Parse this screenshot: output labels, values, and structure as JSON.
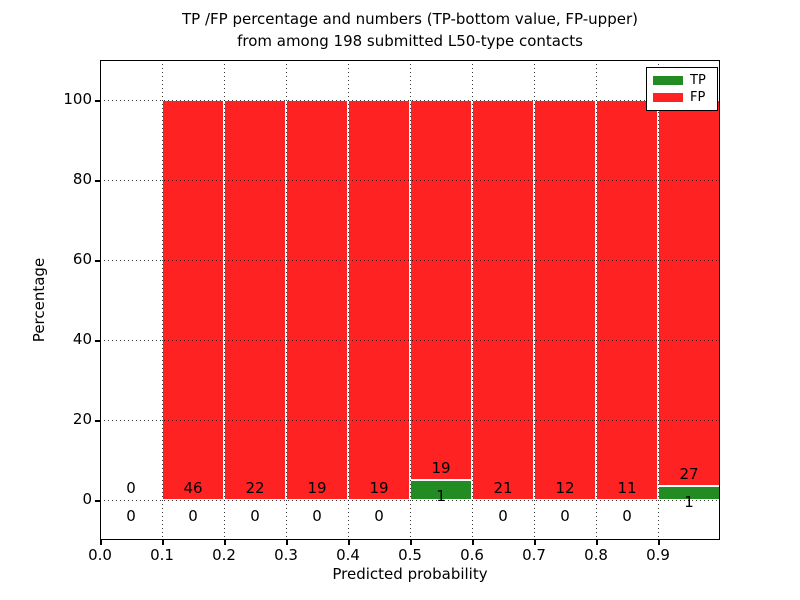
{
  "title": {
    "line1": "TP /FP percentage and numbers (TP-bottom value, FP-upper)",
    "line2": "from among 198 submitted L50-type contacts"
  },
  "axes": {
    "xlabel": "Predicted probability",
    "ylabel": "Percentage"
  },
  "colors": {
    "tp": "#228b22",
    "fp": "#ff2222",
    "grid": "#000000",
    "frame": "#000000",
    "background": "#ffffff",
    "text": "#000000"
  },
  "legend": {
    "items": [
      {
        "label": "TP",
        "color": "#228b22"
      },
      {
        "label": "FP",
        "color": "#ff2222"
      }
    ]
  },
  "chart_data": {
    "type": "bar",
    "stacked": true,
    "title": "TP /FP percentage and numbers (TP-bottom value, FP-upper) from among 198 submitted L50-type contacts",
    "xlabel": "Predicted probability",
    "ylabel": "Percentage",
    "xlim": [
      0.0,
      1.0
    ],
    "ylim": [
      -10,
      110
    ],
    "x_ticks": [
      0.0,
      0.1,
      0.2,
      0.3,
      0.4,
      0.5,
      0.6,
      0.7,
      0.8,
      0.9
    ],
    "x_tick_labels": [
      "0.0",
      "0.1",
      "0.2",
      "0.3",
      "0.4",
      "0.5",
      "0.6",
      "0.7",
      "0.8",
      "0.9"
    ],
    "y_ticks": [
      0,
      20,
      40,
      60,
      80,
      100
    ],
    "y_tick_labels": [
      "0",
      "20",
      "40",
      "60",
      "80",
      "100"
    ],
    "grid": "dotted",
    "legend_position": "upper right",
    "total_contacts": 198,
    "bin_edges": [
      0.0,
      0.1,
      0.2,
      0.3,
      0.4,
      0.5,
      0.6,
      0.7,
      0.8,
      0.9,
      1.0
    ],
    "bins": [
      {
        "range": [
          0.0,
          0.1
        ],
        "tp": 0,
        "fp": 0,
        "tp_pct": 0,
        "fp_pct": 0
      },
      {
        "range": [
          0.1,
          0.2
        ],
        "tp": 0,
        "fp": 46,
        "tp_pct": 0,
        "fp_pct": 100
      },
      {
        "range": [
          0.2,
          0.3
        ],
        "tp": 0,
        "fp": 22,
        "tp_pct": 0,
        "fp_pct": 100
      },
      {
        "range": [
          0.3,
          0.4
        ],
        "tp": 0,
        "fp": 19,
        "tp_pct": 0,
        "fp_pct": 100
      },
      {
        "range": [
          0.4,
          0.5
        ],
        "tp": 0,
        "fp": 19,
        "tp_pct": 0,
        "fp_pct": 100
      },
      {
        "range": [
          0.5,
          0.6
        ],
        "tp": 1,
        "fp": 19,
        "tp_pct": 5.0,
        "fp_pct": 95.0
      },
      {
        "range": [
          0.6,
          0.7
        ],
        "tp": 0,
        "fp": 21,
        "tp_pct": 0,
        "fp_pct": 100
      },
      {
        "range": [
          0.7,
          0.8
        ],
        "tp": 0,
        "fp": 12,
        "tp_pct": 0,
        "fp_pct": 100
      },
      {
        "range": [
          0.8,
          0.9
        ],
        "tp": 0,
        "fp": 11,
        "tp_pct": 0,
        "fp_pct": 100
      },
      {
        "range": [
          0.9,
          1.0
        ],
        "tp": 1,
        "fp": 27,
        "tp_pct": 3.57,
        "fp_pct": 96.43
      }
    ],
    "series": [
      {
        "name": "TP",
        "color": "#228b22",
        "counts": [
          0,
          0,
          0,
          0,
          0,
          1,
          0,
          0,
          0,
          1
        ],
        "values_pct": [
          0,
          0,
          0,
          0,
          0,
          5.0,
          0,
          0,
          0,
          3.57
        ]
      },
      {
        "name": "FP",
        "color": "#ff2222",
        "counts": [
          0,
          46,
          22,
          19,
          19,
          19,
          21,
          12,
          11,
          27
        ],
        "values_pct": [
          0,
          100,
          100,
          100,
          100,
          95.0,
          100,
          100,
          100,
          96.43
        ]
      }
    ],
    "label_offsets": {
      "fp_label_pct_above_tp": 3,
      "tp_label_pct_offset": -4
    }
  }
}
